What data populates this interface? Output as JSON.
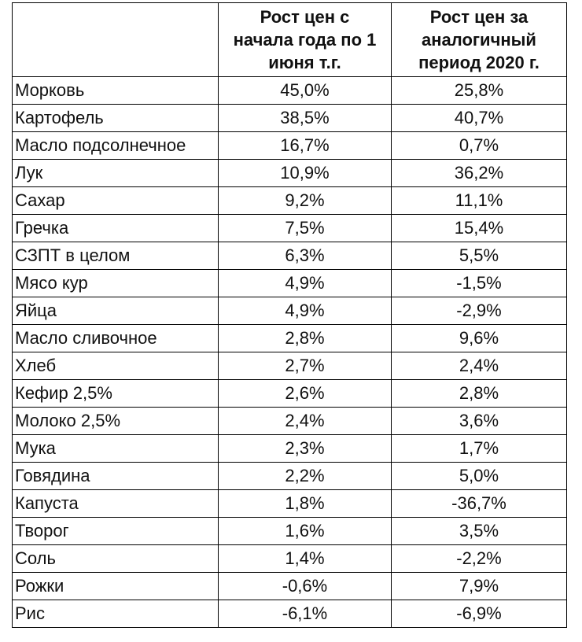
{
  "table": {
    "columns": [
      [
        "Рост цен с",
        "начала года по 1",
        "июня т.г."
      ],
      [
        "Рост цен за",
        "аналогичный",
        "период 2020 г."
      ]
    ],
    "rows": [
      [
        "Морковь",
        "45,0%",
        "25,8%"
      ],
      [
        "Картофель",
        "38,5%",
        "40,7%"
      ],
      [
        "Масло подсолнечное",
        "16,7%",
        "0,7%"
      ],
      [
        "Лук",
        "10,9%",
        "36,2%"
      ],
      [
        "Сахар",
        "9,2%",
        "11,1%"
      ],
      [
        "Гречка",
        "7,5%",
        "15,4%"
      ],
      [
        "СЗПТ в целом",
        "6,3%",
        "5,5%"
      ],
      [
        "Мясо кур",
        "4,9%",
        "-1,5%"
      ],
      [
        "Яйца",
        "4,9%",
        "-2,9%"
      ],
      [
        "Масло сливочное",
        "2,8%",
        "9,6%"
      ],
      [
        "Хлеб",
        "2,7%",
        "2,4%"
      ],
      [
        "Кефир 2,5%",
        "2,6%",
        "2,8%"
      ],
      [
        "Молоко 2,5%",
        "2,4%",
        "3,6%"
      ],
      [
        "Мука",
        "2,3%",
        "1,7%"
      ],
      [
        "Говядина",
        "2,2%",
        "5,0%"
      ],
      [
        "Капуста",
        "1,8%",
        "-36,7%"
      ],
      [
        "Творог",
        "1,6%",
        "3,5%"
      ],
      [
        "Соль",
        "1,4%",
        "-2,2%"
      ],
      [
        "Рожки",
        "-0,6%",
        "7,9%"
      ],
      [
        "Рис",
        "-6,1%",
        "-6,9%"
      ]
    ]
  }
}
